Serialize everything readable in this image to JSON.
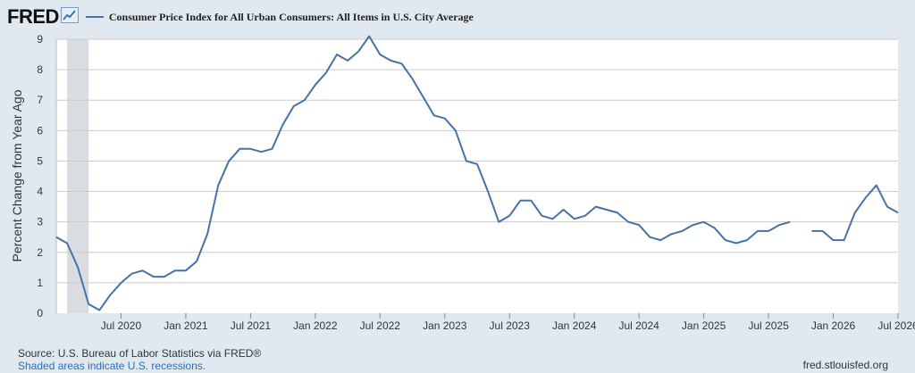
{
  "logo": {
    "text": "FRED",
    "icon": "trend-line-icon"
  },
  "legend": {
    "label": "Consumer Price Index for All Urban Consumers: All Items in U.S. City Average"
  },
  "colors": {
    "line": "#4572a7",
    "recession": "#d9dde2",
    "grid": "#cccccc",
    "page": "#e1e9f0",
    "plot": "#ffffff"
  },
  "chart_data": {
    "type": "line",
    "title": "",
    "ylabel": "Percent Change from Year Ago",
    "xlabel": "",
    "ylim": [
      0,
      9
    ],
    "yticks": [
      0,
      1,
      2,
      3,
      4,
      5,
      6,
      7,
      8,
      9
    ],
    "xlim": [
      "2020-01",
      "2026-07"
    ],
    "xticks": [
      {
        "label": "Jul 2020",
        "date": "2020-07"
      },
      {
        "label": "Jan 2021",
        "date": "2021-01"
      },
      {
        "label": "Jul 2021",
        "date": "2021-07"
      },
      {
        "label": "Jan 2022",
        "date": "2022-01"
      },
      {
        "label": "Jul 2022",
        "date": "2022-07"
      },
      {
        "label": "Jan 2023",
        "date": "2023-01"
      },
      {
        "label": "Jul 2023",
        "date": "2023-07"
      },
      {
        "label": "Jan 2024",
        "date": "2024-01"
      },
      {
        "label": "Jul 2024",
        "date": "2024-07"
      },
      {
        "label": "Jan 2025",
        "date": "2025-01"
      },
      {
        "label": "Jul 2025",
        "date": "2025-07"
      },
      {
        "label": "Jan 2026",
        "date": "2026-01"
      },
      {
        "label": "Jul 2026",
        "date": "2026-07"
      }
    ],
    "recessions": [
      {
        "start": "2020-02",
        "end": "2020-04"
      }
    ],
    "grid": true,
    "series": [
      {
        "name": "Consumer Price Index for All Urban Consumers: All Items in U.S. City Average",
        "color": "#4572a7",
        "points": [
          [
            "2020-01",
            2.5
          ],
          [
            "2020-02",
            2.3
          ],
          [
            "2020-03",
            1.5
          ],
          [
            "2020-04",
            0.3
          ],
          [
            "2020-05",
            0.1
          ],
          [
            "2020-06",
            0.6
          ],
          [
            "2020-07",
            1.0
          ],
          [
            "2020-08",
            1.3
          ],
          [
            "2020-09",
            1.4
          ],
          [
            "2020-10",
            1.2
          ],
          [
            "2020-11",
            1.2
          ],
          [
            "2020-12",
            1.4
          ],
          [
            "2021-01",
            1.4
          ],
          [
            "2021-02",
            1.7
          ],
          [
            "2021-03",
            2.6
          ],
          [
            "2021-04",
            4.2
          ],
          [
            "2021-05",
            5.0
          ],
          [
            "2021-06",
            5.4
          ],
          [
            "2021-07",
            5.4
          ],
          [
            "2021-08",
            5.3
          ],
          [
            "2021-09",
            5.4
          ],
          [
            "2021-10",
            6.2
          ],
          [
            "2021-11",
            6.8
          ],
          [
            "2021-12",
            7.0
          ],
          [
            "2022-01",
            7.5
          ],
          [
            "2022-02",
            7.9
          ],
          [
            "2022-03",
            8.5
          ],
          [
            "2022-04",
            8.3
          ],
          [
            "2022-05",
            8.6
          ],
          [
            "2022-06",
            9.1
          ],
          [
            "2022-07",
            8.5
          ],
          [
            "2022-08",
            8.3
          ],
          [
            "2022-09",
            8.2
          ],
          [
            "2022-10",
            7.7
          ],
          [
            "2022-11",
            7.1
          ],
          [
            "2022-12",
            6.5
          ],
          [
            "2023-01",
            6.4
          ],
          [
            "2023-02",
            6.0
          ],
          [
            "2023-03",
            5.0
          ],
          [
            "2023-04",
            4.9
          ],
          [
            "2023-05",
            4.0
          ],
          [
            "2023-06",
            3.0
          ],
          [
            "2023-07",
            3.2
          ],
          [
            "2023-08",
            3.7
          ],
          [
            "2023-09",
            3.7
          ],
          [
            "2023-10",
            3.2
          ],
          [
            "2023-11",
            3.1
          ],
          [
            "2023-12",
            3.4
          ],
          [
            "2024-01",
            3.1
          ],
          [
            "2024-02",
            3.2
          ],
          [
            "2024-03",
            3.5
          ],
          [
            "2024-04",
            3.4
          ],
          [
            "2024-05",
            3.3
          ],
          [
            "2024-06",
            3.0
          ],
          [
            "2024-07",
            2.9
          ],
          [
            "2024-08",
            2.5
          ],
          [
            "2024-09",
            2.4
          ],
          [
            "2024-10",
            2.6
          ],
          [
            "2024-11",
            2.7
          ],
          [
            "2024-12",
            2.9
          ],
          [
            "2025-01",
            3.0
          ],
          [
            "2025-02",
            2.8
          ],
          [
            "2025-03",
            2.4
          ],
          [
            "2025-04",
            2.3
          ],
          [
            "2025-05",
            2.4
          ],
          [
            "2025-06",
            2.7
          ],
          [
            "2025-07",
            2.7
          ],
          [
            "2025-08",
            2.9
          ],
          [
            "2025-09",
            3.0
          ],
          [
            "2025-10",
            null
          ],
          [
            "2025-11",
            2.7
          ],
          [
            "2025-12",
            2.7
          ],
          [
            "2026-01",
            2.4
          ],
          [
            "2026-02",
            2.4
          ],
          [
            "2026-03",
            3.3
          ],
          [
            "2026-04",
            3.8
          ],
          [
            "2026-05",
            4.2
          ],
          [
            "2026-06",
            3.5
          ],
          [
            "2026-07",
            3.3
          ]
        ]
      }
    ]
  },
  "footer": {
    "source": "Source: U.S. Bureau of Labor Statistics via FRED®",
    "recession_note": "Shaded areas indicate U.S. recessions.",
    "site": "fred.stlouisfed.org"
  }
}
